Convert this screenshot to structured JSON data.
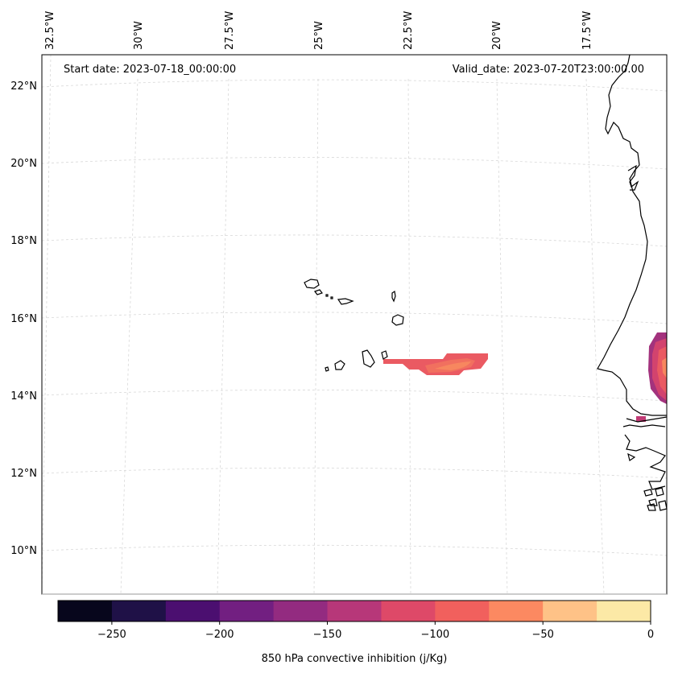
{
  "header": {
    "start_date": "Start date: 2023-07-18_00:00:00",
    "valid_date": "Valid_date: 2023-07-20T23:00:00.00"
  },
  "map": {
    "lon_labels": [
      "32.5°W",
      "30°W",
      "27.5°W",
      "25°W",
      "22.5°W",
      "20°W",
      "17.5°W"
    ],
    "lat_labels": [
      "22°N",
      "20°N",
      "18°N",
      "16°N",
      "14°N",
      "12°N",
      "10°N"
    ]
  },
  "colorbar": {
    "label": "850 hPa convective inhibition (j/Kg)",
    "ticks": [
      "−250",
      "−200",
      "−150",
      "−100",
      "−50",
      "0"
    ],
    "colors": [
      "#07061c",
      "#1f1147",
      "#4b0f70",
      "#721f81",
      "#932b80",
      "#b73779",
      "#de4968",
      "#f1605d",
      "#fc8961",
      "#fec287",
      "#fce9a6"
    ]
  }
}
